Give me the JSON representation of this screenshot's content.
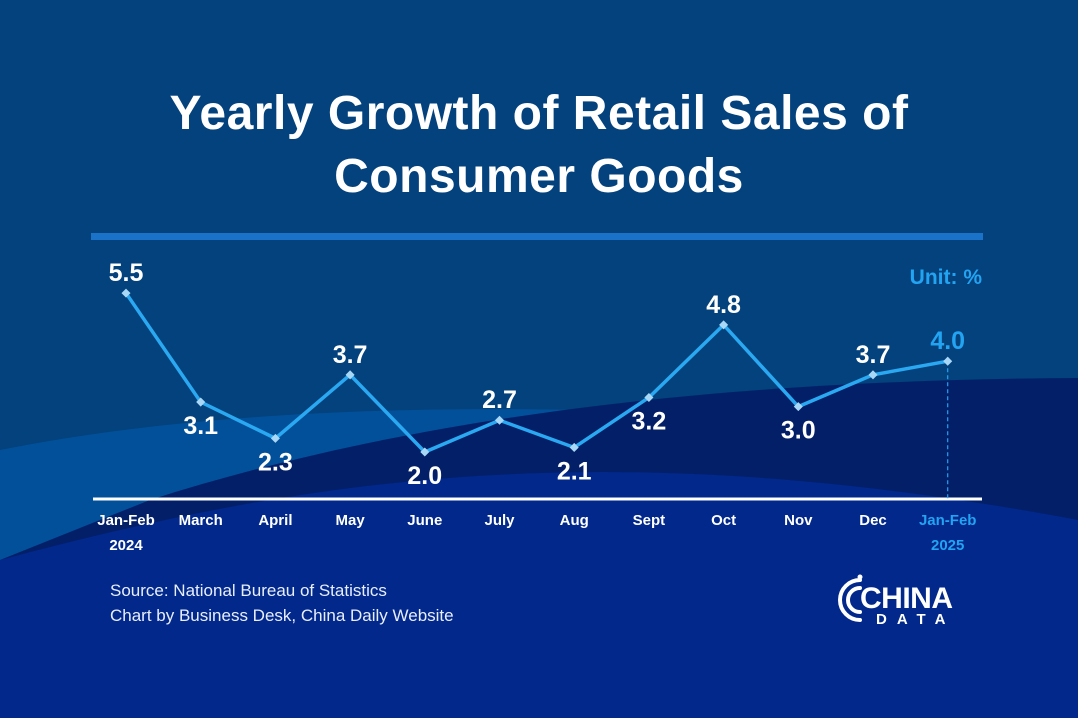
{
  "title_line1": "Yearly Growth of Retail Sales of",
  "title_line2": "Consumer Goods",
  "unit_label": "Unit: %",
  "source": "Source: National Bureau of Statistics",
  "credit": "Chart by Business Desk, China Daily Website",
  "logo": {
    "word1": "CHINA",
    "word2": "DATA"
  },
  "colors": {
    "background_top": "#03427c",
    "background_bottom": "#01246f",
    "line": "#2aa8f2",
    "marker": "#a9d8f7",
    "label": "#ffffff",
    "highlight": "#22a4f3",
    "title_rule": "#1a73c9"
  },
  "chart_data": {
    "type": "line",
    "title": "Yearly Growth of Retail Sales of Consumer Goods",
    "unit": "%",
    "xlabel": "",
    "ylabel": "",
    "categories": [
      "Jan-Feb 2024",
      "March",
      "April",
      "May",
      "June",
      "July",
      "Aug",
      "Sept",
      "Oct",
      "Nov",
      "Dec",
      "Jan-Feb 2025"
    ],
    "tick_labels": [
      [
        "Jan-Feb",
        "2024"
      ],
      [
        "March"
      ],
      [
        "April"
      ],
      [
        "May"
      ],
      [
        "June"
      ],
      [
        "July"
      ],
      [
        "Aug"
      ],
      [
        "Sept"
      ],
      [
        "Oct"
      ],
      [
        "Nov"
      ],
      [
        "Dec"
      ],
      [
        "Jan-Feb",
        "2025"
      ]
    ],
    "series": [
      {
        "name": "Yearly growth",
        "values": [
          5.5,
          3.1,
          2.3,
          3.7,
          2.0,
          2.7,
          2.1,
          3.2,
          4.8,
          3.0,
          3.7,
          4.0
        ]
      }
    ],
    "data_labels": [
      "5.5",
      "3.1",
      "2.3",
      "3.7",
      "2.0",
      "2.7",
      "2.1",
      "3.2",
      "4.8",
      "3.0",
      "3.7",
      "4.0"
    ],
    "label_position": [
      "above",
      "below",
      "below",
      "above",
      "below",
      "above",
      "below",
      "below",
      "above",
      "below",
      "above",
      "above"
    ],
    "highlight_index": 11,
    "ylim": [
      0,
      6
    ],
    "grid": false,
    "legend": "none"
  }
}
